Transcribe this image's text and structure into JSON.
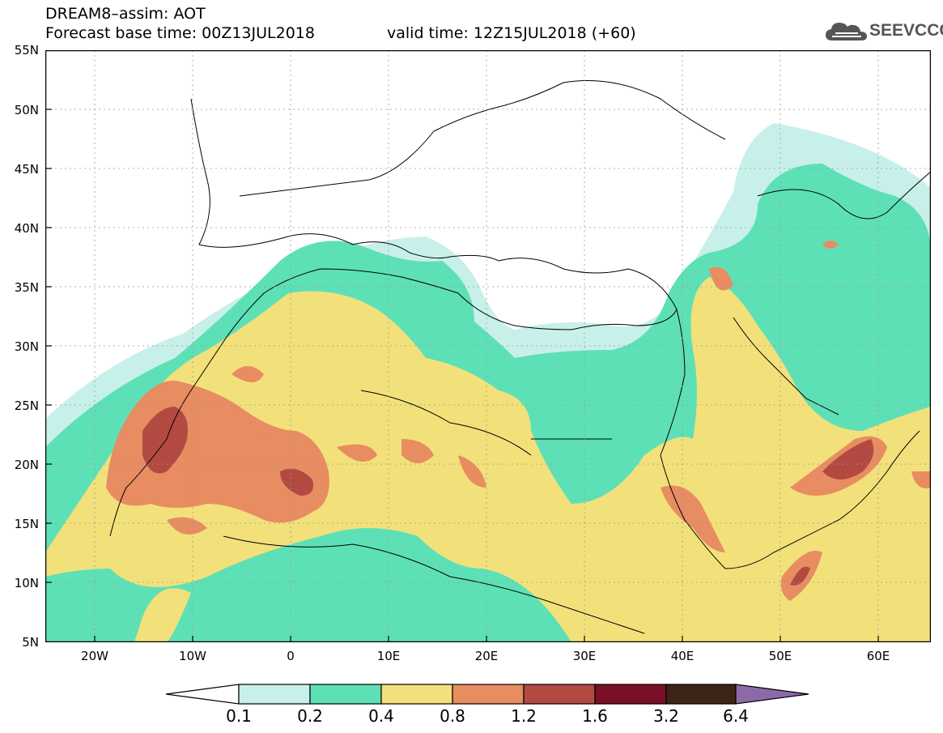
{
  "title": {
    "line1": "DREAM8–assim: AOT",
    "line2": "Forecast base time: 00Z13JUL2018",
    "valid": "valid time: 12Z15JUL2018 (+60)"
  },
  "logo": {
    "text": "SEEVCCC",
    "icon": "cloud-logo-icon",
    "color": "#555555"
  },
  "map": {
    "lon_range": [
      -25,
      65
    ],
    "lat_range": [
      5,
      55
    ],
    "y_tick_labels": [
      "55N",
      "50N",
      "45N",
      "40N",
      "35N",
      "30N",
      "25N",
      "20N",
      "15N",
      "10N",
      "5N"
    ],
    "x_tick_labels": [
      "20W",
      "10W",
      "0",
      "10E",
      "20E",
      "30E",
      "40E",
      "50E",
      "60E"
    ]
  },
  "colorbar": {
    "labels": [
      "0.1",
      "0.2",
      "0.4",
      "0.8",
      "1.2",
      "1.6",
      "3.2",
      "6.4"
    ],
    "colors": [
      "#c8f0ea",
      "#5ee0b6",
      "#f2e17a",
      "#e88c62",
      "#b24a42",
      "#7a0f28",
      "#3d2414",
      "#8c6aa8"
    ],
    "under_color": "#ffffff"
  }
}
